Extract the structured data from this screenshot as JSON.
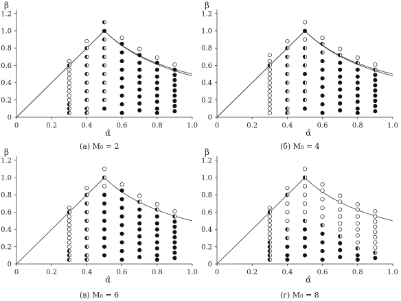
{
  "figure": {
    "ylabel": "β",
    "xlabel": "α̂",
    "x_ticks": [
      "0",
      "0.2",
      "0.4",
      "0.6",
      "0.8",
      "1.0"
    ],
    "y_ticks": [
      "0",
      "0.2",
      "0.4",
      "0.6",
      "0.8",
      "1.0",
      "1.2"
    ]
  },
  "legend_of_markers": {
    "open": "hollow circle",
    "half": "half-filled circle",
    "filled": "solid black circle"
  },
  "chart_data": [
    {
      "type": "scatter",
      "caption": "(а) M₀ = 2",
      "panel_letter": "(а)",
      "m0": "2",
      "xlim": [
        0,
        1.0
      ],
      "ylim": [
        0,
        1.2
      ],
      "boundary_curves": 2,
      "boundary_peak": [
        0.5,
        1.0
      ],
      "columns": [
        {
          "x": 0.3,
          "y": [
            0.65,
            0.6,
            0.55,
            0.5,
            0.45,
            0.4,
            0.35,
            0.3,
            0.25,
            0.2,
            0.15,
            0.1,
            0.05
          ],
          "state": [
            "open",
            "half",
            "open",
            "open",
            "open",
            "open",
            "open",
            "open",
            "open",
            "open",
            "half",
            "half",
            "half"
          ]
        },
        {
          "x": 0.4,
          "y": [
            0.88,
            0.8,
            0.7,
            0.6,
            0.5,
            0.4,
            0.3,
            0.2,
            0.1,
            0.05
          ],
          "state": [
            "open",
            "half",
            "half",
            "half",
            "half",
            "half",
            "half",
            "half",
            "half",
            "half"
          ]
        },
        {
          "x": 0.5,
          "y": [
            1.1,
            1.0,
            0.9,
            0.8,
            0.7,
            0.6,
            0.5,
            0.4,
            0.3,
            0.2,
            0.1
          ],
          "state": [
            "half",
            "filled",
            "half",
            "half",
            "half",
            "half",
            "half",
            "half",
            "half",
            "half",
            "filled"
          ]
        },
        {
          "x": 0.6,
          "y": [
            0.92,
            0.85,
            0.75,
            0.65,
            0.55,
            0.45,
            0.35,
            0.25,
            0.15,
            0.05
          ],
          "state": [
            "open",
            "filled",
            "filled",
            "filled",
            "filled",
            "filled",
            "filled",
            "filled",
            "filled",
            "filled"
          ]
        },
        {
          "x": 0.7,
          "y": [
            0.79,
            0.72,
            0.63,
            0.55,
            0.47,
            0.4,
            0.32,
            0.24,
            0.16,
            0.08
          ],
          "state": [
            "open",
            "filled",
            "filled",
            "filled",
            "filled",
            "filled",
            "filled",
            "filled",
            "filled",
            "filled"
          ]
        },
        {
          "x": 0.8,
          "y": [
            0.69,
            0.63,
            0.55,
            0.47,
            0.4,
            0.33,
            0.25,
            0.18,
            0.1,
            0.05
          ],
          "state": [
            "open",
            "filled",
            "filled",
            "filled",
            "filled",
            "filled",
            "filled",
            "filled",
            "filled",
            "filled"
          ]
        },
        {
          "x": 0.9,
          "y": [
            0.61,
            0.55,
            0.49,
            0.43,
            0.37,
            0.31,
            0.25,
            0.19,
            0.13,
            0.07
          ],
          "state": [
            "open",
            "filled",
            "filled",
            "filled",
            "filled",
            "filled",
            "filled",
            "filled",
            "filled",
            "filled"
          ]
        }
      ]
    },
    {
      "type": "scatter",
      "caption": "(б) M₀ = 4",
      "panel_letter": "(б)",
      "m0": "4",
      "xlim": [
        0,
        1.0
      ],
      "ylim": [
        0,
        1.2
      ],
      "boundary_curves": 2,
      "boundary_peak": [
        0.5,
        1.0
      ],
      "columns": [
        {
          "x": 0.3,
          "y": [
            0.72,
            0.65,
            0.6,
            0.55,
            0.5,
            0.45,
            0.4,
            0.35,
            0.3,
            0.25,
            0.2,
            0.15,
            0.1,
            0.05
          ],
          "state": [
            "open",
            "open",
            "half",
            "open",
            "open",
            "open",
            "open",
            "open",
            "open",
            "open",
            "open",
            "open",
            "open",
            "open"
          ]
        },
        {
          "x": 0.4,
          "y": [
            0.88,
            0.8,
            0.7,
            0.6,
            0.5,
            0.4,
            0.3,
            0.2,
            0.1,
            0.05
          ],
          "state": [
            "open",
            "half",
            "half",
            "half",
            "half",
            "half",
            "half",
            "half",
            "half",
            "half"
          ]
        },
        {
          "x": 0.5,
          "y": [
            1.1,
            1.0,
            0.9,
            0.8,
            0.7,
            0.6,
            0.5,
            0.4,
            0.3,
            0.2,
            0.1
          ],
          "state": [
            "open",
            "filled",
            "open",
            "half",
            "half",
            "half",
            "filled",
            "half",
            "half",
            "half",
            "filled"
          ]
        },
        {
          "x": 0.6,
          "y": [
            0.92,
            0.85,
            0.75,
            0.65,
            0.55,
            0.45,
            0.35,
            0.25,
            0.15,
            0.05
          ],
          "state": [
            "open",
            "half",
            "half",
            "filled",
            "filled",
            "filled",
            "filled",
            "filled",
            "filled",
            "filled"
          ]
        },
        {
          "x": 0.7,
          "y": [
            0.79,
            0.72,
            0.63,
            0.55,
            0.47,
            0.4,
            0.32,
            0.24,
            0.16,
            0.08
          ],
          "state": [
            "open",
            "half",
            "filled",
            "filled",
            "filled",
            "filled",
            "filled",
            "filled",
            "filled",
            "filled"
          ]
        },
        {
          "x": 0.8,
          "y": [
            0.69,
            0.63,
            0.55,
            0.47,
            0.4,
            0.33,
            0.25,
            0.18,
            0.1,
            0.05
          ],
          "state": [
            "open",
            "half",
            "filled",
            "filled",
            "filled",
            "filled",
            "filled",
            "filled",
            "filled",
            "filled"
          ]
        },
        {
          "x": 0.9,
          "y": [
            0.61,
            0.55,
            0.49,
            0.43,
            0.37,
            0.31,
            0.25,
            0.19,
            0.13,
            0.07
          ],
          "state": [
            "open",
            "half",
            "filled",
            "filled",
            "filled",
            "filled",
            "filled",
            "filled",
            "filled",
            "filled"
          ]
        }
      ]
    },
    {
      "type": "scatter",
      "caption": "(в) M₀ = 6",
      "panel_letter": "(в)",
      "m0": "6",
      "xlim": [
        0,
        1.0
      ],
      "ylim": [
        0,
        1.2
      ],
      "boundary_curves": 1,
      "boundary_peak": [
        0.5,
        1.0
      ],
      "columns": [
        {
          "x": 0.3,
          "y": [
            0.65,
            0.6,
            0.55,
            0.5,
            0.45,
            0.4,
            0.35,
            0.3,
            0.25,
            0.2,
            0.15,
            0.1,
            0.05
          ],
          "state": [
            "open",
            "half",
            "open",
            "open",
            "open",
            "open",
            "open",
            "open",
            "open",
            "open",
            "half",
            "half",
            "half"
          ]
        },
        {
          "x": 0.4,
          "y": [
            0.88,
            0.8,
            0.7,
            0.6,
            0.5,
            0.4,
            0.3,
            0.2,
            0.1,
            0.05
          ],
          "state": [
            "open",
            "half",
            "half",
            "half",
            "half",
            "half",
            "half",
            "half",
            "half",
            "half"
          ]
        },
        {
          "x": 0.5,
          "y": [
            1.1,
            1.0,
            0.9,
            0.8,
            0.7,
            0.6,
            0.5,
            0.4,
            0.3,
            0.2,
            0.1
          ],
          "state": [
            "open",
            "half",
            "open",
            "filled",
            "filled",
            "filled",
            "filled",
            "filled",
            "filled",
            "filled",
            "filled"
          ]
        },
        {
          "x": 0.6,
          "y": [
            0.92,
            0.85,
            0.75,
            0.65,
            0.55,
            0.45,
            0.35,
            0.25,
            0.15,
            0.05
          ],
          "state": [
            "open",
            "filled",
            "filled",
            "filled",
            "filled",
            "filled",
            "filled",
            "filled",
            "filled",
            "filled"
          ]
        },
        {
          "x": 0.7,
          "y": [
            0.79,
            0.72,
            0.63,
            0.55,
            0.47,
            0.4,
            0.32,
            0.24,
            0.16,
            0.08
          ],
          "state": [
            "open",
            "half",
            "filled",
            "filled",
            "filled",
            "filled",
            "filled",
            "filled",
            "filled",
            "filled"
          ]
        },
        {
          "x": 0.8,
          "y": [
            0.69,
            0.63,
            0.55,
            0.47,
            0.4,
            0.33,
            0.25,
            0.18,
            0.1,
            0.05
          ],
          "state": [
            "open",
            "half",
            "filled",
            "filled",
            "filled",
            "filled",
            "filled",
            "filled",
            "filled",
            "filled"
          ]
        },
        {
          "x": 0.9,
          "y": [
            0.61,
            0.55,
            0.49,
            0.43,
            0.37,
            0.31,
            0.25,
            0.19,
            0.13,
            0.07
          ],
          "state": [
            "open",
            "half",
            "filled",
            "filled",
            "filled",
            "filled",
            "filled",
            "filled",
            "filled",
            "filled"
          ]
        }
      ]
    },
    {
      "type": "scatter",
      "caption": "(г) M₀ = 8",
      "panel_letter": "(г)",
      "m0": "8",
      "xlim": [
        0,
        1.0
      ],
      "ylim": [
        0,
        1.2
      ],
      "boundary_curves": 1,
      "boundary_peak": [
        0.5,
        1.0
      ],
      "columns": [
        {
          "x": 0.3,
          "y": [
            0.65,
            0.6,
            0.55,
            0.5,
            0.45,
            0.4,
            0.35,
            0.3,
            0.25,
            0.2,
            0.15,
            0.1,
            0.05
          ],
          "state": [
            "open",
            "half",
            "open",
            "open",
            "open",
            "open",
            "open",
            "open",
            "half",
            "half",
            "half",
            "half",
            "half"
          ]
        },
        {
          "x": 0.4,
          "y": [
            0.88,
            0.8,
            0.7,
            0.6,
            0.5,
            0.4,
            0.3,
            0.2,
            0.1,
            0.05
          ],
          "state": [
            "open",
            "half",
            "open",
            "open",
            "open",
            "half",
            "half",
            "filled",
            "filled",
            "filled"
          ]
        },
        {
          "x": 0.5,
          "y": [
            1.1,
            1.0,
            0.9,
            0.8,
            0.7,
            0.6,
            0.5,
            0.4,
            0.3,
            0.2,
            0.1
          ],
          "state": [
            "open",
            "half",
            "open",
            "open",
            "open",
            "open",
            "half",
            "filled",
            "filled",
            "filled",
            "filled"
          ]
        },
        {
          "x": 0.6,
          "y": [
            0.92,
            0.85,
            0.75,
            0.65,
            0.55,
            0.45,
            0.35,
            0.25,
            0.15,
            0.05
          ],
          "state": [
            "open",
            "open",
            "open",
            "open",
            "open",
            "half",
            "filled",
            "filled",
            "filled",
            "filled"
          ]
        },
        {
          "x": 0.7,
          "y": [
            0.79,
            0.72,
            0.63,
            0.55,
            0.47,
            0.4,
            0.32,
            0.24,
            0.16,
            0.08
          ],
          "state": [
            "open",
            "open",
            "open",
            "open",
            "open",
            "open",
            "half",
            "filled",
            "filled",
            "filled"
          ]
        },
        {
          "x": 0.8,
          "y": [
            0.69,
            0.63,
            0.55,
            0.47,
            0.4,
            0.33,
            0.25,
            0.18,
            0.1,
            0.05
          ],
          "state": [
            "open",
            "open",
            "open",
            "open",
            "open",
            "open",
            "open",
            "half",
            "filled",
            "filled"
          ]
        },
        {
          "x": 0.9,
          "y": [
            0.61,
            0.55,
            0.49,
            0.43,
            0.37,
            0.31,
            0.25,
            0.19,
            0.13,
            0.07
          ],
          "state": [
            "open",
            "open",
            "open",
            "open",
            "open",
            "open",
            "open",
            "open",
            "half",
            "filled"
          ]
        }
      ]
    }
  ]
}
